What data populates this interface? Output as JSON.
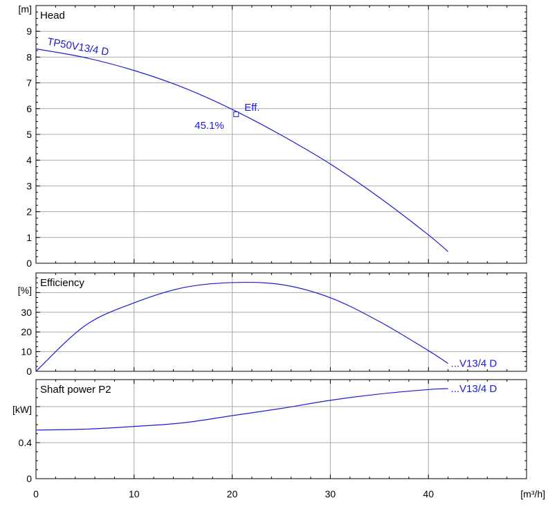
{
  "chart_data": {
    "type": "line",
    "x_unit": "[m³/h]",
    "x_ticks": [
      "0",
      "10",
      "20",
      "30",
      "40"
    ],
    "xlim": [
      0,
      50
    ],
    "color": "#1a1ad6",
    "panels": [
      {
        "id": "head",
        "title": "Head",
        "y_unit": "[m]",
        "ylim": [
          0,
          10
        ],
        "y_ticks": [
          "0",
          "1",
          "2",
          "3",
          "4",
          "5",
          "6",
          "7",
          "8",
          "9"
        ],
        "series": [
          {
            "name": "TP50V13/4 D",
            "x": [
              0,
              5,
              10,
              15,
              20,
              25,
              30,
              35,
              40,
              42
            ],
            "y": [
              8.32,
              7.98,
              7.48,
              6.82,
              5.97,
              4.97,
              3.85,
              2.55,
              1.1,
              0.45
            ]
          }
        ],
        "annotations": [
          {
            "text": "Eff.",
            "role": "marker-label"
          },
          {
            "text": "45.1%",
            "role": "marker-value"
          }
        ],
        "marker": {
          "x": 20.4,
          "y": 5.78
        }
      },
      {
        "id": "efficiency",
        "title": "Efficiency",
        "y_unit": "[%]",
        "ylim": [
          0,
          50
        ],
        "y_ticks": [
          "0",
          "10",
          "20",
          "30",
          ""
        ],
        "series": [
          {
            "name": "...V13/4 D",
            "x": [
              0,
              5,
              10,
              15,
              20,
              25,
              30,
              35,
              40,
              42
            ],
            "y": [
              0,
              23.2,
              34.8,
              42.5,
              45.1,
              44.1,
              37.4,
              25.3,
              10.5,
              4.0
            ]
          }
        ]
      },
      {
        "id": "power",
        "title": "Shaft power P2",
        "y_unit": "[kW]",
        "ylim": [
          0,
          1.1
        ],
        "y_ticks": [
          "0",
          "0.4",
          ""
        ],
        "series": [
          {
            "name": "...V13/4 D",
            "x": [
              0,
              5,
              10,
              15,
              20,
              25,
              30,
              35,
              40,
              42
            ],
            "y": [
              0.54,
              0.55,
              0.58,
              0.62,
              0.7,
              0.78,
              0.87,
              0.94,
              0.99,
              1.0
            ]
          }
        ]
      }
    ]
  }
}
